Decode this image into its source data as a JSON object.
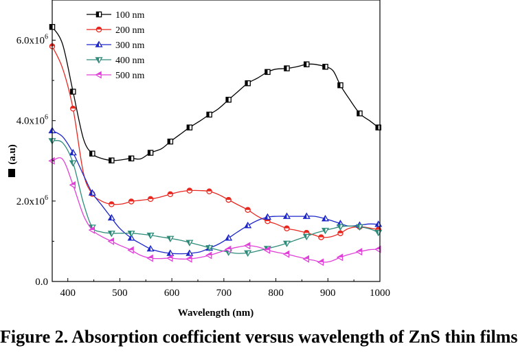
{
  "chart_data": {
    "type": "line",
    "xlabel": "Wavelength (nm)",
    "ylabel": "(a.u)",
    "xlim": [
      370,
      1000
    ],
    "ylim": [
      0,
      7000000
    ],
    "x_ticks": [
      400,
      500,
      600,
      700,
      800,
      900,
      1000
    ],
    "y_ticks": [
      0,
      2000000,
      4000000,
      6000000
    ],
    "x_tick_labels": [
      "400",
      "500",
      "600",
      "700",
      "800",
      "900",
      "1000"
    ],
    "y_tick_labels": [
      {
        "base": "0.0",
        "exp": ""
      },
      {
        "base": "2.0x10",
        "exp": "6"
      },
      {
        "base": "4.0x10",
        "exp": "6"
      },
      {
        "base": "6.0x10",
        "exp": "6"
      }
    ],
    "legend_position": "top-left",
    "grid": false,
    "series": [
      {
        "name": "100 nm",
        "color": "#000000",
        "marker": "square",
        "x": [
          370,
          390,
          410,
          430,
          447,
          465,
          484,
          500,
          522,
          540,
          559,
          580,
          597,
          615,
          634,
          655,
          672,
          690,
          709,
          725,
          746,
          765,
          784,
          800,
          821,
          840,
          859,
          875,
          895,
          910,
          924,
          940,
          961,
          980,
          997
        ],
        "y": [
          6330000,
          5900000,
          4720000,
          3550000,
          3180000,
          3060000,
          3010000,
          3020000,
          3060000,
          3050000,
          3200000,
          3300000,
          3480000,
          3650000,
          3830000,
          4000000,
          4150000,
          4300000,
          4520000,
          4700000,
          4930000,
          5060000,
          5210000,
          5280000,
          5300000,
          5340000,
          5400000,
          5400000,
          5340000,
          5240000,
          4880000,
          4560000,
          4180000,
          4000000,
          3830000
        ],
        "marker_every": 2
      },
      {
        "name": "200 nm",
        "color": "#e8271f",
        "marker": "circle",
        "x": [
          370,
          390,
          410,
          430,
          447,
          465,
          484,
          505,
          522,
          540,
          559,
          578,
          597,
          615,
          634,
          655,
          672,
          690,
          709,
          725,
          746,
          765,
          784,
          800,
          821,
          840,
          859,
          875,
          887,
          905,
          924,
          940,
          961,
          980,
          997
        ],
        "y": [
          5850000,
          5300000,
          4300000,
          2700000,
          2180000,
          2000000,
          1920000,
          1930000,
          1990000,
          2020000,
          2050000,
          2100000,
          2170000,
          2230000,
          2260000,
          2260000,
          2240000,
          2160000,
          2030000,
          1920000,
          1780000,
          1620000,
          1500000,
          1430000,
          1320000,
          1270000,
          1210000,
          1150000,
          1100000,
          1110000,
          1200000,
          1320000,
          1360000,
          1330000,
          1290000
        ],
        "marker_every": 2
      },
      {
        "name": "300 nm",
        "color": "#1c26c9",
        "marker": "triangle-up",
        "x": [
          370,
          390,
          410,
          430,
          447,
          465,
          484,
          500,
          522,
          540,
          559,
          578,
          597,
          615,
          634,
          655,
          672,
          690,
          709,
          725,
          746,
          765,
          784,
          800,
          821,
          840,
          859,
          875,
          895,
          910,
          924,
          940,
          961,
          980,
          997
        ],
        "y": [
          3750000,
          3600000,
          3200000,
          2650000,
          2200000,
          1900000,
          1580000,
          1320000,
          1080000,
          940000,
          810000,
          740000,
          700000,
          690000,
          700000,
          740000,
          830000,
          930000,
          1080000,
          1220000,
          1390000,
          1520000,
          1600000,
          1620000,
          1620000,
          1620000,
          1620000,
          1620000,
          1560000,
          1500000,
          1440000,
          1380000,
          1400000,
          1430000,
          1420000
        ],
        "marker_every": 2
      },
      {
        "name": "400 nm",
        "color": "#2e8b7a",
        "marker": "triangle-down",
        "x": [
          370,
          390,
          410,
          430,
          447,
          465,
          484,
          505,
          522,
          540,
          559,
          578,
          597,
          615,
          634,
          655,
          672,
          690,
          709,
          725,
          746,
          765,
          784,
          800,
          821,
          840,
          859,
          875,
          895,
          910,
          924,
          940,
          961,
          980,
          997
        ],
        "y": [
          3500000,
          3450000,
          2950000,
          1950000,
          1350000,
          1230000,
          1200000,
          1200000,
          1200000,
          1180000,
          1150000,
          1110000,
          1070000,
          1030000,
          970000,
          900000,
          840000,
          780000,
          730000,
          700000,
          710000,
          760000,
          820000,
          870000,
          950000,
          1040000,
          1120000,
          1200000,
          1270000,
          1320000,
          1360000,
          1380000,
          1360000,
          1310000,
          1220000
        ],
        "marker_every": 2
      },
      {
        "name": "500 nm",
        "color": "#e040d8",
        "marker": "triangle-left",
        "x": [
          370,
          390,
          410,
          430,
          447,
          465,
          484,
          500,
          522,
          540,
          559,
          578,
          597,
          615,
          634,
          655,
          672,
          690,
          709,
          725,
          746,
          765,
          784,
          800,
          821,
          840,
          859,
          875,
          887,
          905,
          924,
          940,
          961,
          980,
          997
        ],
        "y": [
          3000000,
          3040000,
          2400000,
          1650000,
          1280000,
          1120000,
          1000000,
          900000,
          780000,
          650000,
          580000,
          570000,
          580000,
          560000,
          560000,
          600000,
          650000,
          720000,
          800000,
          850000,
          890000,
          860000,
          780000,
          730000,
          680000,
          620000,
          560000,
          520000,
          480000,
          500000,
          600000,
          670000,
          740000,
          790000,
          800000
        ],
        "marker_every": 2
      }
    ]
  },
  "caption": "Figure 2. Absorption coefficient versus wavelength of ZnS thin films"
}
